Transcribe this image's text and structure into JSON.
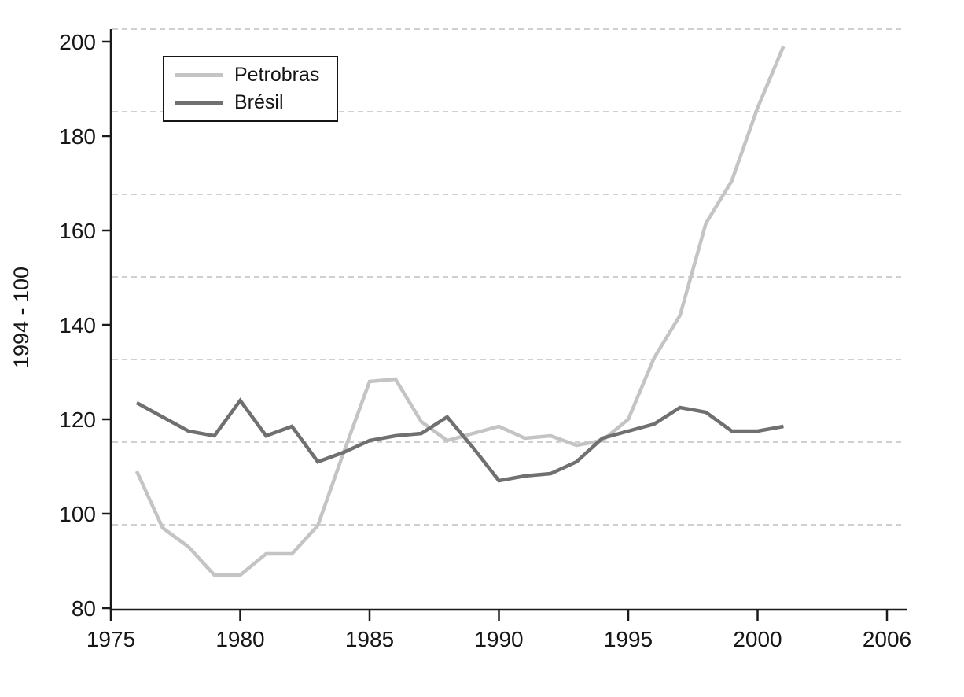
{
  "chart_data": {
    "type": "line",
    "title": "",
    "xlabel": "",
    "ylabel": "1994 - 100",
    "ylim": [
      80,
      200
    ],
    "xlim": [
      1975,
      2006
    ],
    "grid": "horizontal-dashed",
    "legend_position": "top-left",
    "x_tick_labels": [
      "1975",
      "1980",
      "1985",
      "1990",
      "1995",
      "2000",
      "2006"
    ],
    "y_tick_labels": [
      "80",
      "100",
      "120",
      "140",
      "160",
      "180",
      "200"
    ],
    "x": [
      1976,
      1977,
      1978,
      1979,
      1980,
      1981,
      1982,
      1983,
      1984,
      1985,
      1986,
      1987,
      1988,
      1989,
      1990,
      1991,
      1992,
      1993,
      1994,
      1995,
      1996,
      1997,
      1998,
      1999,
      2000,
      2001
    ],
    "series": [
      {
        "name": "Petrobras",
        "color": "#c2c4c6",
        "values": [
          109,
          97,
          93,
          87,
          87,
          91.5,
          91.5,
          97.5,
          113,
          128,
          128.5,
          119.5,
          115.5,
          117,
          118.5,
          116,
          116.5,
          114.5,
          115.5,
          120,
          133,
          142,
          161.5,
          170.5,
          186,
          199
        ]
      },
      {
        "name": "Brésil",
        "color": "#6e7072",
        "values": [
          123.5,
          120.5,
          117.5,
          116.5,
          124,
          116.5,
          118.5,
          111,
          113,
          115.5,
          116.5,
          117,
          120.5,
          114,
          107,
          108,
          108.5,
          111,
          116,
          117.5,
          119,
          122.5,
          121.5,
          117.5,
          117.5,
          118.5
        ]
      }
    ],
    "colors": {
      "axis": "#1a1a1a",
      "gridline": "#d0d0d0",
      "text": "#161616"
    }
  }
}
